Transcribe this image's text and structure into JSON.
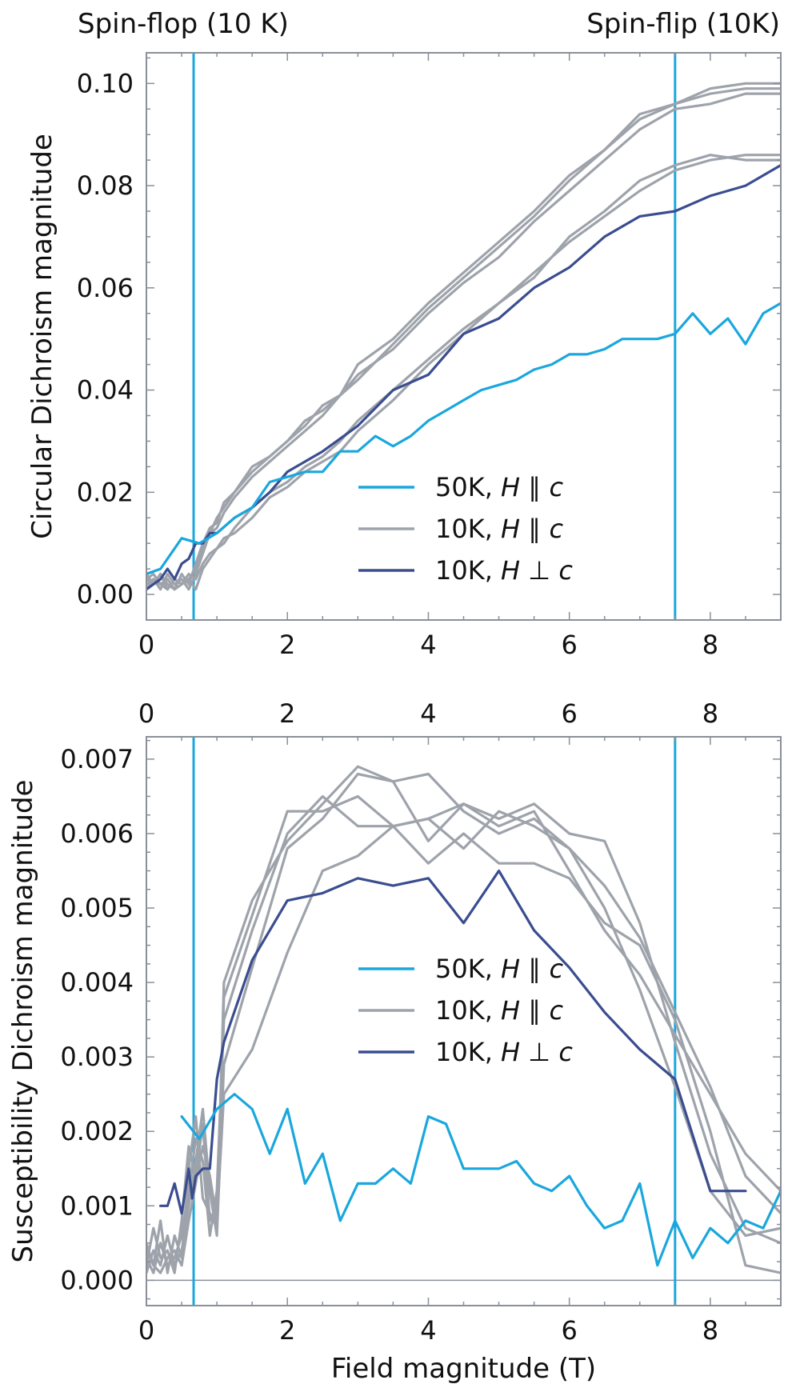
{
  "annotations": {
    "spin_flop": "Spin-flop (10 K)",
    "spin_flip": "Spin-flip (10K)"
  },
  "colors": {
    "cyan": "#1aa7dd",
    "gray": "#9ea3ab",
    "navy": "#3a4d8f",
    "axis": "#8a8f99"
  },
  "chart_data": [
    {
      "type": "line",
      "title": "",
      "xlabel": "",
      "ylabel": "Circular Dichroism magnitude",
      "xlim": [
        0,
        9
      ],
      "ylim": [
        -0.005,
        0.106
      ],
      "xticks": [
        "0",
        "2",
        "4",
        "6",
        "8"
      ],
      "yticks": [
        "0.00",
        "0.02",
        "0.04",
        "0.06",
        "0.08",
        "0.10"
      ],
      "vlines": [
        0.67,
        7.5
      ],
      "legend_position": "lower-right",
      "legend": [
        {
          "temp": "50K, ",
          "var": "H",
          "rel": " ∥ ",
          "axis": "c",
          "color_key": "cyan"
        },
        {
          "temp": "10K, ",
          "var": "H",
          "rel": " ∥ ",
          "axis": "c",
          "color_key": "gray"
        },
        {
          "temp": "10K, ",
          "var": "H",
          "rel": " ⊥ ",
          "axis": "c",
          "color_key": "navy"
        }
      ],
      "series": [
        {
          "color_key": "gray",
          "x": [
            0,
            0.1,
            0.2,
            0.3,
            0.4,
            0.5,
            0.6,
            0.7,
            0.8,
            0.9,
            1.0,
            1.1,
            1.25,
            1.5,
            1.75,
            2.0,
            2.25,
            2.5,
            2.75,
            3.0,
            3.5,
            4.0,
            4.5,
            5.0,
            5.5,
            6.0,
            6.5,
            7.0,
            7.5,
            8.0,
            8.5,
            9.0
          ],
          "y": [
            0.004,
            0.002,
            0.004,
            0.001,
            0.003,
            0.002,
            0.003,
            0.005,
            0.009,
            0.012,
            0.015,
            0.017,
            0.02,
            0.025,
            0.027,
            0.03,
            0.033,
            0.037,
            0.039,
            0.042,
            0.049,
            0.056,
            0.062,
            0.068,
            0.074,
            0.081,
            0.087,
            0.093,
            0.096,
            0.098,
            0.099,
            0.099
          ]
        },
        {
          "color_key": "gray",
          "x": [
            0,
            0.1,
            0.2,
            0.3,
            0.4,
            0.5,
            0.6,
            0.7,
            0.8,
            0.9,
            1.0,
            1.1,
            1.25,
            1.5,
            1.75,
            2.0,
            2.25,
            2.5,
            2.75,
            3.0,
            3.5,
            4.0,
            4.5,
            5.0,
            5.5,
            6.0,
            6.5,
            7.0,
            7.5,
            8.0,
            8.5,
            9.0
          ],
          "y": [
            0.003,
            0.004,
            0.002,
            0.003,
            0.001,
            0.004,
            0.002,
            0.006,
            0.01,
            0.013,
            0.014,
            0.018,
            0.02,
            0.024,
            0.027,
            0.03,
            0.034,
            0.036,
            0.039,
            0.045,
            0.05,
            0.057,
            0.063,
            0.069,
            0.075,
            0.082,
            0.087,
            0.094,
            0.096,
            0.099,
            0.1,
            0.1
          ]
        },
        {
          "color_key": "gray",
          "x": [
            0,
            0.1,
            0.2,
            0.3,
            0.4,
            0.5,
            0.6,
            0.7,
            0.8,
            0.9,
            1.0,
            1.1,
            1.25,
            1.5,
            1.75,
            2.0,
            2.25,
            2.5,
            2.75,
            3.0,
            3.5,
            4.0,
            4.5,
            5.0,
            5.5,
            6.0,
            6.5,
            7.0,
            7.5,
            8.0,
            8.5,
            9.0
          ],
          "y": [
            0.002,
            0.003,
            0.001,
            0.004,
            0.002,
            0.003,
            0.001,
            0.004,
            0.008,
            0.012,
            0.013,
            0.016,
            0.019,
            0.023,
            0.026,
            0.029,
            0.032,
            0.035,
            0.039,
            0.043,
            0.048,
            0.055,
            0.061,
            0.066,
            0.073,
            0.079,
            0.085,
            0.091,
            0.095,
            0.096,
            0.098,
            0.098
          ]
        },
        {
          "color_key": "gray",
          "x": [
            0,
            0.1,
            0.2,
            0.3,
            0.4,
            0.5,
            0.6,
            0.7,
            0.8,
            0.9,
            1.0,
            1.1,
            1.25,
            1.5,
            1.75,
            2.0,
            2.25,
            2.5,
            2.75,
            3.0,
            3.5,
            4.0,
            4.5,
            5.0,
            5.5,
            6.0,
            6.5,
            7.0,
            7.5,
            8.0,
            8.5,
            9.0
          ],
          "y": [
            0.001,
            0.003,
            0.002,
            0.001,
            0.003,
            0.002,
            0.003,
            0.001,
            0.005,
            0.007,
            0.009,
            0.01,
            0.013,
            0.017,
            0.02,
            0.022,
            0.025,
            0.027,
            0.03,
            0.034,
            0.04,
            0.046,
            0.052,
            0.057,
            0.063,
            0.069,
            0.074,
            0.079,
            0.083,
            0.085,
            0.086,
            0.086
          ]
        },
        {
          "color_key": "gray",
          "x": [
            0,
            0.1,
            0.2,
            0.3,
            0.4,
            0.5,
            0.6,
            0.7,
            0.8,
            0.9,
            1.0,
            1.1,
            1.25,
            1.5,
            1.75,
            2.0,
            2.25,
            2.5,
            2.75,
            3.0,
            3.5,
            4.0,
            4.5,
            5.0,
            5.5,
            6.0,
            6.5,
            7.0,
            7.5,
            8.0,
            8.5,
            9.0
          ],
          "y": [
            0.003,
            0.002,
            0.004,
            0.002,
            0.001,
            0.002,
            0.004,
            0.003,
            0.006,
            0.008,
            0.009,
            0.011,
            0.012,
            0.015,
            0.019,
            0.021,
            0.024,
            0.026,
            0.028,
            0.032,
            0.038,
            0.045,
            0.051,
            0.057,
            0.062,
            0.07,
            0.075,
            0.081,
            0.084,
            0.086,
            0.085,
            0.085
          ]
        },
        {
          "color_key": "navy",
          "x": [
            0,
            0.1,
            0.2,
            0.3,
            0.4,
            0.5,
            0.6,
            0.7,
            0.8,
            0.9,
            1.0,
            1.25,
            1.5,
            1.75,
            2.0,
            2.5,
            3.0,
            3.5,
            4.0,
            4.5,
            5.0,
            5.5,
            6.0,
            6.5,
            7.0,
            7.5,
            8.0,
            8.5,
            9.0
          ],
          "y": [
            0.001,
            0.002,
            0.003,
            0.005,
            0.003,
            0.006,
            0.007,
            0.01,
            0.01,
            0.012,
            0.012,
            0.015,
            0.017,
            0.02,
            0.024,
            0.028,
            0.033,
            0.04,
            0.043,
            0.051,
            0.054,
            0.06,
            0.064,
            0.07,
            0.074,
            0.075,
            0.078,
            0.08,
            0.084
          ]
        },
        {
          "color_key": "cyan",
          "x": [
            0,
            0.2,
            0.5,
            0.75,
            1.0,
            1.25,
            1.5,
            1.75,
            2.0,
            2.25,
            2.5,
            2.75,
            3.0,
            3.25,
            3.5,
            3.75,
            4.0,
            4.25,
            4.5,
            4.75,
            5.0,
            5.25,
            5.5,
            5.75,
            6.0,
            6.25,
            6.5,
            6.75,
            7.0,
            7.25,
            7.5,
            7.75,
            8.0,
            8.25,
            8.5,
            8.75,
            9.0
          ],
          "y": [
            0.004,
            0.005,
            0.011,
            0.01,
            0.012,
            0.015,
            0.017,
            0.022,
            0.023,
            0.024,
            0.024,
            0.028,
            0.028,
            0.031,
            0.029,
            0.031,
            0.034,
            0.036,
            0.038,
            0.04,
            0.041,
            0.042,
            0.044,
            0.045,
            0.047,
            0.047,
            0.048,
            0.05,
            0.05,
            0.05,
            0.051,
            0.055,
            0.051,
            0.054,
            0.049,
            0.055,
            0.057
          ]
        }
      ]
    },
    {
      "type": "line",
      "title": "",
      "xlabel": "Field magnitude (T)",
      "ylabel": "Susceptibility Dichroism magnitude",
      "xlim": [
        0,
        9
      ],
      "ylim": [
        -0.00034,
        0.0073
      ],
      "xticks": [
        "0",
        "2",
        "4",
        "6",
        "8"
      ],
      "xticks_top": [
        "0",
        "2",
        "4",
        "6",
        "8"
      ],
      "yticks": [
        "0.000",
        "0.001",
        "0.002",
        "0.003",
        "0.004",
        "0.005",
        "0.006",
        "0.007"
      ],
      "vlines": [
        0.67,
        7.5
      ],
      "hline": 0,
      "legend_position": "center",
      "legend": [
        {
          "temp": "50K, ",
          "var": "H",
          "rel": " ∥ ",
          "axis": "c",
          "color_key": "cyan"
        },
        {
          "temp": "10K, ",
          "var": "H",
          "rel": " ∥ ",
          "axis": "c",
          "color_key": "gray"
        },
        {
          "temp": "10K, ",
          "var": "H",
          "rel": " ⊥ ",
          "axis": "c",
          "color_key": "navy"
        }
      ],
      "series": [
        {
          "color_key": "gray",
          "x": [
            0,
            0.1,
            0.2,
            0.3,
            0.4,
            0.5,
            0.6,
            0.7,
            0.8,
            0.9,
            1.0,
            1.1,
            1.5,
            2.0,
            2.5,
            3.0,
            3.5,
            4.0,
            4.5,
            5.0,
            5.5,
            6.0,
            6.5,
            7.0,
            7.5,
            8.0,
            8.5,
            9.0
          ],
          "y": [
            0.0005,
            0.0002,
            0.0008,
            0.0001,
            0.0006,
            0.0003,
            0.0015,
            0.0022,
            0.0011,
            0.0009,
            0.0007,
            0.004,
            0.0051,
            0.0059,
            0.0064,
            0.0069,
            0.0067,
            0.0059,
            0.0064,
            0.0061,
            0.0063,
            0.0055,
            0.0047,
            0.0041,
            0.0033,
            0.0025,
            0.0017,
            0.0012
          ]
        },
        {
          "color_key": "gray",
          "x": [
            0,
            0.1,
            0.2,
            0.3,
            0.4,
            0.5,
            0.6,
            0.7,
            0.8,
            0.9,
            1.0,
            1.1,
            1.5,
            2.0,
            2.5,
            3.0,
            3.5,
            4.0,
            4.5,
            5.0,
            5.5,
            6.0,
            6.5,
            7.0,
            7.5,
            8.0,
            8.5,
            9.0
          ],
          "y": [
            0.0002,
            0.0007,
            0.0003,
            0.0004,
            0.0001,
            0.0008,
            0.0018,
            0.0014,
            0.0021,
            0.0008,
            0.001,
            0.0038,
            0.0049,
            0.0063,
            0.0063,
            0.0065,
            0.0061,
            0.0062,
            0.0058,
            0.0063,
            0.0061,
            0.0058,
            0.0053,
            0.0046,
            0.0036,
            0.0026,
            0.0014,
            0.0009
          ]
        },
        {
          "color_key": "gray",
          "x": [
            0,
            0.1,
            0.2,
            0.3,
            0.4,
            0.5,
            0.6,
            0.7,
            0.8,
            0.9,
            1.0,
            1.1,
            1.5,
            2.0,
            2.5,
            3.0,
            3.5,
            4.0,
            4.5,
            5.0,
            5.5,
            6.0,
            6.5,
            7.0,
            7.5,
            8.0,
            8.5,
            9.0
          ],
          "y": [
            0.0003,
            0.0001,
            0.0005,
            0.0002,
            0.0003,
            0.0006,
            0.0012,
            0.0019,
            0.0016,
            0.0006,
            0.0012,
            0.0035,
            0.0047,
            0.006,
            0.0065,
            0.0061,
            0.0061,
            0.0062,
            0.0064,
            0.0062,
            0.0064,
            0.006,
            0.0059,
            0.0048,
            0.0032,
            0.0017,
            0.0007,
            0.0005
          ]
        },
        {
          "color_key": "gray",
          "x": [
            0,
            0.1,
            0.2,
            0.3,
            0.4,
            0.5,
            0.6,
            0.7,
            0.8,
            0.9,
            1.0,
            1.1,
            1.5,
            2.0,
            2.5,
            3.0,
            3.5,
            4.0,
            4.5,
            5.0,
            5.5,
            6.0,
            6.5,
            7.0,
            7.5,
            8.0,
            8.5,
            9.0
          ],
          "y": [
            0.0001,
            0.0004,
            0.0002,
            0.0006,
            0.0002,
            0.0004,
            0.001,
            0.0016,
            0.0023,
            0.0012,
            0.0006,
            0.0029,
            0.0042,
            0.0058,
            0.0062,
            0.0068,
            0.0067,
            0.0068,
            0.0063,
            0.006,
            0.0062,
            0.0058,
            0.005,
            0.0039,
            0.0026,
            0.0012,
            0.0006,
            0.0007
          ]
        },
        {
          "color_key": "gray",
          "x": [
            0,
            0.1,
            0.2,
            0.3,
            0.4,
            0.5,
            0.6,
            0.7,
            0.8,
            0.9,
            1.0,
            1.1,
            1.5,
            2.0,
            2.5,
            3.0,
            3.5,
            4.0,
            4.5,
            5.0,
            5.5,
            6.0,
            6.5,
            7.0,
            7.5,
            8.0,
            8.5,
            9.0
          ],
          "y": [
            0.0004,
            0.0002,
            0.0001,
            0.0003,
            0.0004,
            0.0002,
            0.0008,
            0.0013,
            0.0018,
            0.0014,
            0.0008,
            0.0025,
            0.0031,
            0.0044,
            0.0055,
            0.0057,
            0.0061,
            0.0056,
            0.006,
            0.0056,
            0.0056,
            0.0054,
            0.0048,
            0.0045,
            0.0035,
            0.002,
            0.0002,
            0.0001
          ]
        },
        {
          "color_key": "navy",
          "x": [
            0.2,
            0.3,
            0.4,
            0.5,
            0.6,
            0.65,
            0.7,
            0.8,
            0.9,
            1.0,
            1.1,
            1.5,
            2.0,
            2.5,
            3.0,
            3.5,
            4.0,
            4.5,
            5.0,
            5.5,
            6.0,
            6.5,
            7.0,
            7.5,
            8.0,
            8.5
          ],
          "y": [
            0.001,
            0.001,
            0.0013,
            0.0009,
            0.0015,
            0.0011,
            0.0014,
            0.0015,
            0.0015,
            0.0027,
            0.0032,
            0.0043,
            0.0051,
            0.0052,
            0.0054,
            0.0053,
            0.0054,
            0.0048,
            0.0055,
            0.0047,
            0.0042,
            0.0036,
            0.0031,
            0.0027,
            0.0012,
            0.0012
          ]
        },
        {
          "color_key": "cyan",
          "x": [
            0.5,
            0.75,
            1.0,
            1.25,
            1.5,
            1.75,
            2.0,
            2.25,
            2.5,
            2.75,
            3.0,
            3.25,
            3.5,
            3.75,
            4.0,
            4.25,
            4.5,
            4.75,
            5.0,
            5.25,
            5.5,
            5.75,
            6.0,
            6.25,
            6.5,
            6.75,
            7.0,
            7.25,
            7.5,
            7.75,
            8.0,
            8.25,
            8.5,
            8.75,
            9.0
          ],
          "y": [
            0.0022,
            0.0019,
            0.0023,
            0.0025,
            0.0023,
            0.0017,
            0.0023,
            0.0013,
            0.0017,
            0.0008,
            0.0013,
            0.0013,
            0.0015,
            0.0013,
            0.0022,
            0.0021,
            0.0015,
            0.0015,
            0.0015,
            0.0016,
            0.0013,
            0.0012,
            0.0014,
            0.001,
            0.0007,
            0.0008,
            0.0013,
            0.0002,
            0.0008,
            0.0003,
            0.0007,
            0.0005,
            0.0008,
            0.0007,
            0.0012
          ]
        }
      ]
    }
  ]
}
